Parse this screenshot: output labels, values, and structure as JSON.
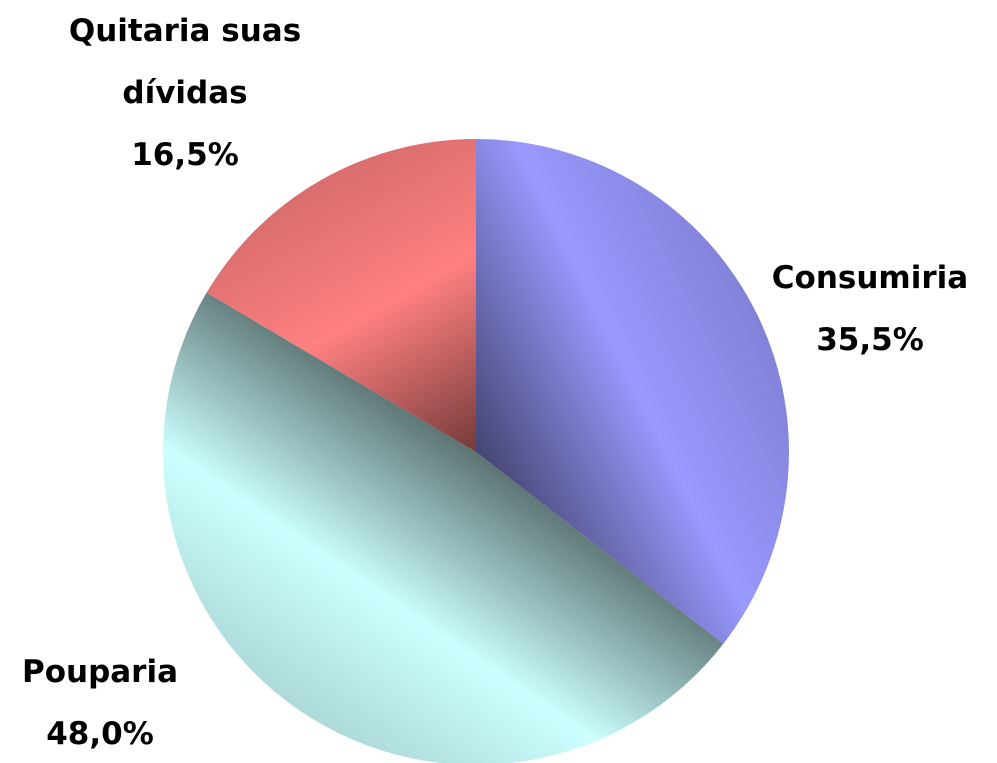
{
  "chart_data": {
    "type": "pie",
    "categories": [
      "Consumiria",
      "Pouparia",
      "Quitaria suas dívidas"
    ],
    "values": [
      35.5,
      48.0,
      16.5
    ],
    "value_labels": [
      "35,5%",
      "48,0%",
      "16,5%"
    ],
    "colors": [
      "#9999ff",
      "#ccffff",
      "#ff8080"
    ]
  }
}
